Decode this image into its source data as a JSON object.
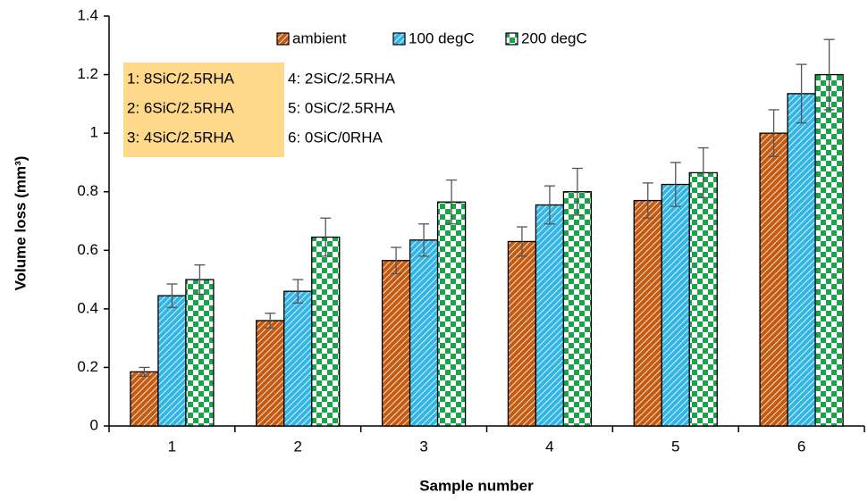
{
  "chart_data": {
    "type": "bar",
    "xlabel": "Sample number",
    "ylabel": "Volume loss (mm³)",
    "categories": [
      "1",
      "2",
      "3",
      "4",
      "5",
      "6"
    ],
    "series": [
      {
        "name": "ambient",
        "color": "#c55a11",
        "pattern": "diagonal",
        "values": [
          0.185,
          0.36,
          0.565,
          0.63,
          0.77,
          1.0
        ],
        "errors": [
          0.015,
          0.025,
          0.045,
          0.05,
          0.06,
          0.08
        ]
      },
      {
        "name": "100 degC",
        "color": "#33b5e5",
        "pattern": "diagonal",
        "values": [
          0.445,
          0.46,
          0.635,
          0.755,
          0.825,
          1.135
        ],
        "errors": [
          0.04,
          0.04,
          0.055,
          0.065,
          0.075,
          0.1
        ]
      },
      {
        "name": "200 degC",
        "color": "#1aa34a",
        "pattern": "checker",
        "values": [
          0.5,
          0.645,
          0.765,
          0.8,
          0.865,
          1.2
        ],
        "errors": [
          0.05,
          0.065,
          0.075,
          0.08,
          0.085,
          0.12
        ]
      }
    ],
    "annotations": [
      "1: 8SiC/2.5RHA",
      "2: 6SiC/2.5RHA",
      "3: 4SiC/2.5RHA",
      "4: 2SiC/2.5RHA",
      "5: 0SiC/2.5RHA",
      "6: 0SiC/0RHA"
    ],
    "annotation_color": "#ffd98a",
    "ylim": [
      0,
      1.4
    ],
    "yticks": [
      0,
      0.2,
      0.4,
      0.6,
      0.8,
      1,
      1.2,
      1.4
    ],
    "legend": "top"
  }
}
